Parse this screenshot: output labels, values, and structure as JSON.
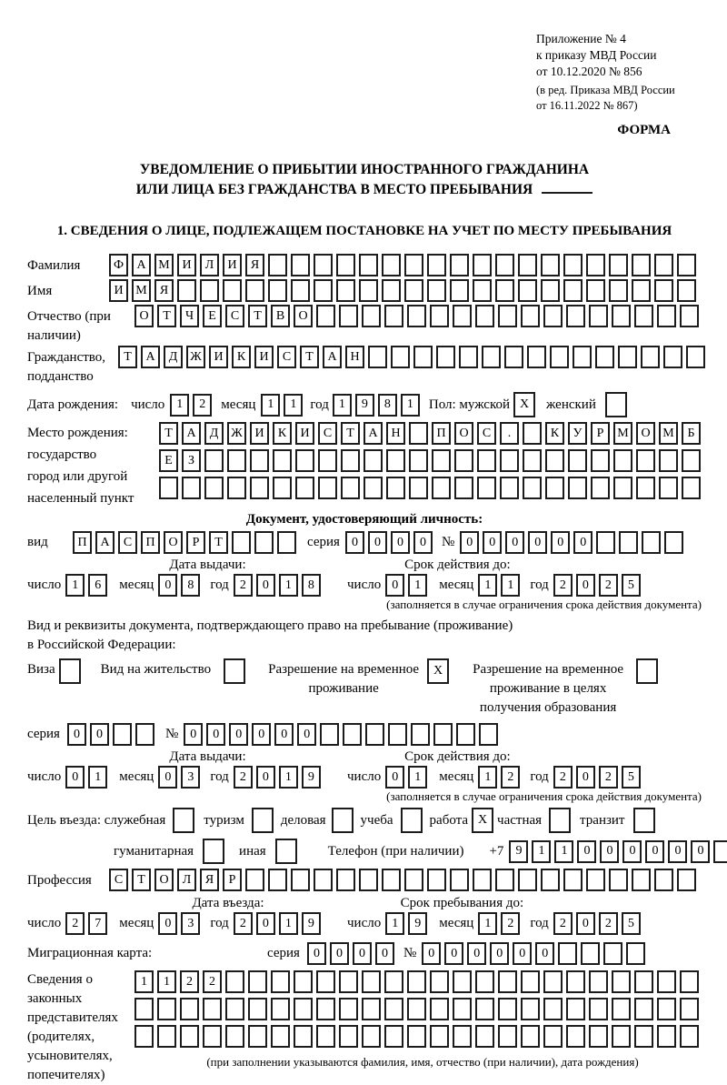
{
  "header": {
    "lines": [
      "Приложение № 4",
      "к приказу МВД России",
      "от 10.12.2020 № 856",
      "(в ред. Приказа МВД России",
      "от 16.11.2022 № 867)"
    ],
    "form_label": "ФОРМА"
  },
  "title": {
    "line1": "УВЕДОМЛЕНИЕ О ПРИБЫТИИ ИНОСТРАННОГО ГРАЖДАНИНА",
    "line2": "ИЛИ ЛИЦА БЕЗ ГРАЖДАНСТВА В МЕСТО ПРЕБЫВАНИЯ"
  },
  "section1": "1. СВЕДЕНИЯ О ЛИЦЕ, ПОДЛЕЖАЩЕМ ПОСТАНОВКЕ НА УЧЕТ ПО МЕСТУ ПРЕБЫВАНИЯ",
  "labels": {
    "day": "число",
    "month": "месяц",
    "year": "год",
    "series": "серия",
    "number": "№",
    "issue_date": "Дата выдачи:",
    "valid_until": "Срок действия до:",
    "validity_note": "(заполняется в случае ограничения срока действия документа)"
  },
  "person": {
    "surname": {
      "label": "Фамилия",
      "value": "ФАМИЛИЯ",
      "count": 26
    },
    "given_name": {
      "label": "Имя",
      "value": "ИМЯ",
      "count": 26
    },
    "patronymic": {
      "label": "Отчество (при наличии)",
      "value": "ОТЧЕСТВО",
      "count": 25
    },
    "citizenship": {
      "label": "Гражданство, подданство",
      "value": "ТАДЖИКИСТАН",
      "count": 26
    },
    "birth_date": {
      "label": "Дата рождения:",
      "day": {
        "value": "12",
        "count": 2
      },
      "month": {
        "value": "11",
        "count": 2
      },
      "year": {
        "value": "1981",
        "count": 4
      }
    },
    "sex": {
      "male_label": "Пол: мужской",
      "male": {
        "value": "X",
        "count": 1
      },
      "female_label": "женский",
      "female": {
        "value": "",
        "count": 1
      }
    },
    "birth_place": {
      "label_lines": [
        "Место рождения:",
        "государство",
        "город или другой",
        "населенный пункт"
      ],
      "rows": [
        {
          "value": "ТАДЖИКИСТАН ПОС. КУРМОМБ",
          "count": 24
        },
        {
          "value": "ЕЗ",
          "count": 24
        },
        {
          "value": "",
          "count": 24
        }
      ]
    }
  },
  "identity_doc": {
    "heading": "Документ, удостоверяющий личность:",
    "type_label": "вид",
    "type": {
      "value": "ПАСПОРТ",
      "count": 10
    },
    "series": {
      "value": "0000",
      "count": 4
    },
    "number": {
      "value": "000000",
      "count": 10
    },
    "issue": {
      "day": {
        "value": "16",
        "count": 2
      },
      "month": {
        "value": "08",
        "count": 2
      },
      "year": {
        "value": "2018",
        "count": 4
      }
    },
    "valid": {
      "day": {
        "value": "01",
        "count": 2
      },
      "month": {
        "value": "11",
        "count": 2
      },
      "year": {
        "value": "2025",
        "count": 4
      }
    }
  },
  "residence_doc": {
    "line1": "Вид и реквизиты документа, подтверждающего право на пребывание (проживание)",
    "line2": "в Российской Федерации:",
    "options": [
      {
        "label": "Виза",
        "box": {
          "value": "",
          "count": 1
        }
      },
      {
        "label": "Вид на жительство",
        "box": {
          "value": "",
          "count": 1
        }
      },
      {
        "label": "Разрешение на временное проживание",
        "box": {
          "value": "X",
          "count": 1
        }
      },
      {
        "label": "Разрешение на временное проживание в целях получения образования",
        "box": {
          "value": "",
          "count": 1
        }
      }
    ],
    "series": {
      "value": "00",
      "count": 4
    },
    "number": {
      "value": "000000",
      "count": 14
    },
    "issue": {
      "day": {
        "value": "01",
        "count": 2
      },
      "month": {
        "value": "03",
        "count": 2
      },
      "year": {
        "value": "2019",
        "count": 4
      }
    },
    "valid": {
      "day": {
        "value": "01",
        "count": 2
      },
      "month": {
        "value": "12",
        "count": 2
      },
      "year": {
        "value": "2025",
        "count": 4
      }
    }
  },
  "purpose": {
    "row1": [
      {
        "label": "Цель въезда: служебная",
        "box": {
          "value": "",
          "count": 1
        }
      },
      {
        "label": "туризм",
        "box": {
          "value": "",
          "count": 1
        }
      },
      {
        "label": "деловая",
        "box": {
          "value": "",
          "count": 1
        }
      },
      {
        "label": "учеба",
        "box": {
          "value": "",
          "count": 1
        }
      },
      {
        "label": "работа",
        "box": {
          "value": "X",
          "count": 1
        }
      },
      {
        "label": "частная",
        "box": {
          "value": "",
          "count": 1
        }
      },
      {
        "label": "транзит",
        "box": {
          "value": "",
          "count": 1
        }
      }
    ],
    "row2": [
      {
        "label": "гуманитарная",
        "box": {
          "value": "",
          "count": 1
        }
      },
      {
        "label": "иная",
        "box": {
          "value": "",
          "count": 1
        }
      }
    ],
    "phone_label": "Телефон (при наличии)",
    "phone_prefix": "+7",
    "phone": {
      "value": "911000000",
      "count": 10
    }
  },
  "profession": {
    "label": "Профессия",
    "value": {
      "value": "СТОЛЯР",
      "count": 26
    }
  },
  "entry": {
    "entry_head": "Дата въезда:",
    "entry": {
      "day": {
        "value": "27",
        "count": 2
      },
      "month": {
        "value": "03",
        "count": 2
      },
      "year": {
        "value": "2019",
        "count": 4
      }
    },
    "stay_head": "Срок пребывания до:",
    "stay": {
      "day": {
        "value": "19",
        "count": 2
      },
      "month": {
        "value": "12",
        "count": 2
      },
      "year": {
        "value": "2025",
        "count": 4
      }
    }
  },
  "migration_card": {
    "label": "Миграционная карта:",
    "series": {
      "value": "0000",
      "count": 4
    },
    "number": {
      "value": "000000",
      "count": 10
    }
  },
  "representatives": {
    "label_lines": [
      "Сведения о",
      "законных",
      "представителях",
      "(родителях,",
      "усыновителях,",
      "попечителях)"
    ],
    "rows": [
      {
        "value": "1122",
        "count": 25
      },
      {
        "value": "",
        "count": 25
      },
      {
        "value": "",
        "count": 25
      }
    ],
    "note": "(при заполнении указываются фамилия, имя, отчество (при наличии), дата рождения)"
  }
}
